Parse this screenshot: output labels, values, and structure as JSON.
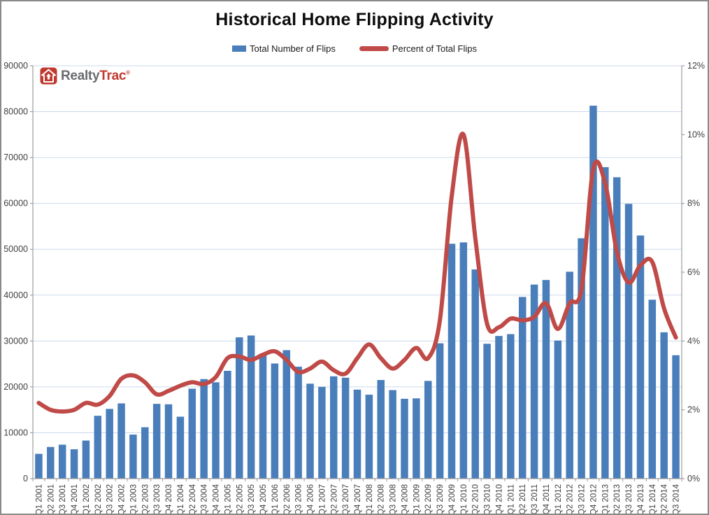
{
  "title": "Historical Home Flipping Activity",
  "legend": {
    "bars_label": "Total Number of Flips",
    "line_label": "Percent of Total Flips"
  },
  "logo": {
    "realty": "Realty",
    "trac": "Trac",
    "mark": "®"
  },
  "colors": {
    "bar": "#4a7ebb",
    "line": "#bf4a47",
    "gridline": "#ccd9ec",
    "axis": "#9c9c9c",
    "tick_text": "#404040"
  },
  "chart_data": {
    "type": "combo",
    "grid": true,
    "legend_position": "top",
    "categories": [
      "Q1 2001",
      "Q2 2001",
      "Q3 2001",
      "Q4 2001",
      "Q1 2002",
      "Q2 2002",
      "Q3 2002",
      "Q4 2002",
      "Q1 2003",
      "Q2 2003",
      "Q3 2003",
      "Q4 2003",
      "Q1 2004",
      "Q2 2004",
      "Q3 2004",
      "Q4 2004",
      "Q1 2005",
      "Q2 2005",
      "Q3 2005",
      "Q4 2005",
      "Q1 2006",
      "Q2 2006",
      "Q3 2006",
      "Q4 2006",
      "Q1 2007",
      "Q2 2007",
      "Q3 2007",
      "Q4 2007",
      "Q1 2008",
      "Q2 2008",
      "Q3 2008",
      "Q4 2008",
      "Q1 2009",
      "Q2 2009",
      "Q3 2009",
      "Q4 2009",
      "Q1 2010",
      "Q2 2010",
      "Q3 2010",
      "Q4 2010",
      "Q1 2011",
      "Q2 2011",
      "Q3 2011",
      "Q4 2011",
      "Q1 2012",
      "Q2 2012",
      "Q3 2012",
      "Q4 2012",
      "Q1 2013",
      "Q2 2013",
      "Q3 2013",
      "Q4 2013",
      "Q1 2014",
      "Q2 2014",
      "Q3 2014"
    ],
    "series": [
      {
        "name": "Total Number of Flips",
        "type": "bar",
        "axis": "left",
        "color": "#4a7ebb",
        "values": [
          5400,
          6900,
          7400,
          6400,
          8300,
          13700,
          15200,
          16400,
          9600,
          11200,
          16300,
          16200,
          13500,
          19600,
          21700,
          21000,
          23500,
          30800,
          31200,
          27200,
          25100,
          28000,
          24400,
          20700,
          20000,
          22300,
          22000,
          19400,
          18300,
          21500,
          19300,
          17400,
          17500,
          21300,
          29500,
          51200,
          51500,
          45600,
          29400,
          31100,
          31500,
          39600,
          42300,
          43300,
          30100,
          45100,
          52400,
          81300,
          67900,
          65700,
          59900,
          53000,
          39000,
          31900,
          26900
        ]
      },
      {
        "name": "Percent of Total Flips",
        "type": "line",
        "axis": "right",
        "color": "#bf4a47",
        "values": [
          2.2,
          2.0,
          1.95,
          2.0,
          2.2,
          2.15,
          2.4,
          2.9,
          3.0,
          2.8,
          2.45,
          2.55,
          2.7,
          2.8,
          2.75,
          2.95,
          3.5,
          3.55,
          3.45,
          3.6,
          3.7,
          3.45,
          3.1,
          3.2,
          3.4,
          3.15,
          3.05,
          3.5,
          3.9,
          3.5,
          3.2,
          3.45,
          3.8,
          3.5,
          4.6,
          8.2,
          10.0,
          7.0,
          4.5,
          4.4,
          4.65,
          4.6,
          4.7,
          5.1,
          4.35,
          5.1,
          5.5,
          9.0,
          8.6,
          6.6,
          5.7,
          6.2,
          6.3,
          4.95,
          4.1
        ]
      }
    ],
    "left_axis": {
      "min": 0,
      "max": 90000,
      "step": 10000,
      "tick_labels": [
        "0",
        "10000",
        "20000",
        "30000",
        "40000",
        "50000",
        "60000",
        "70000",
        "80000",
        "90000"
      ]
    },
    "right_axis": {
      "min": 0,
      "max": 12,
      "step": 2,
      "tick_labels": [
        "0%",
        "2%",
        "4%",
        "6%",
        "8%",
        "10%",
        "12%"
      ]
    }
  }
}
